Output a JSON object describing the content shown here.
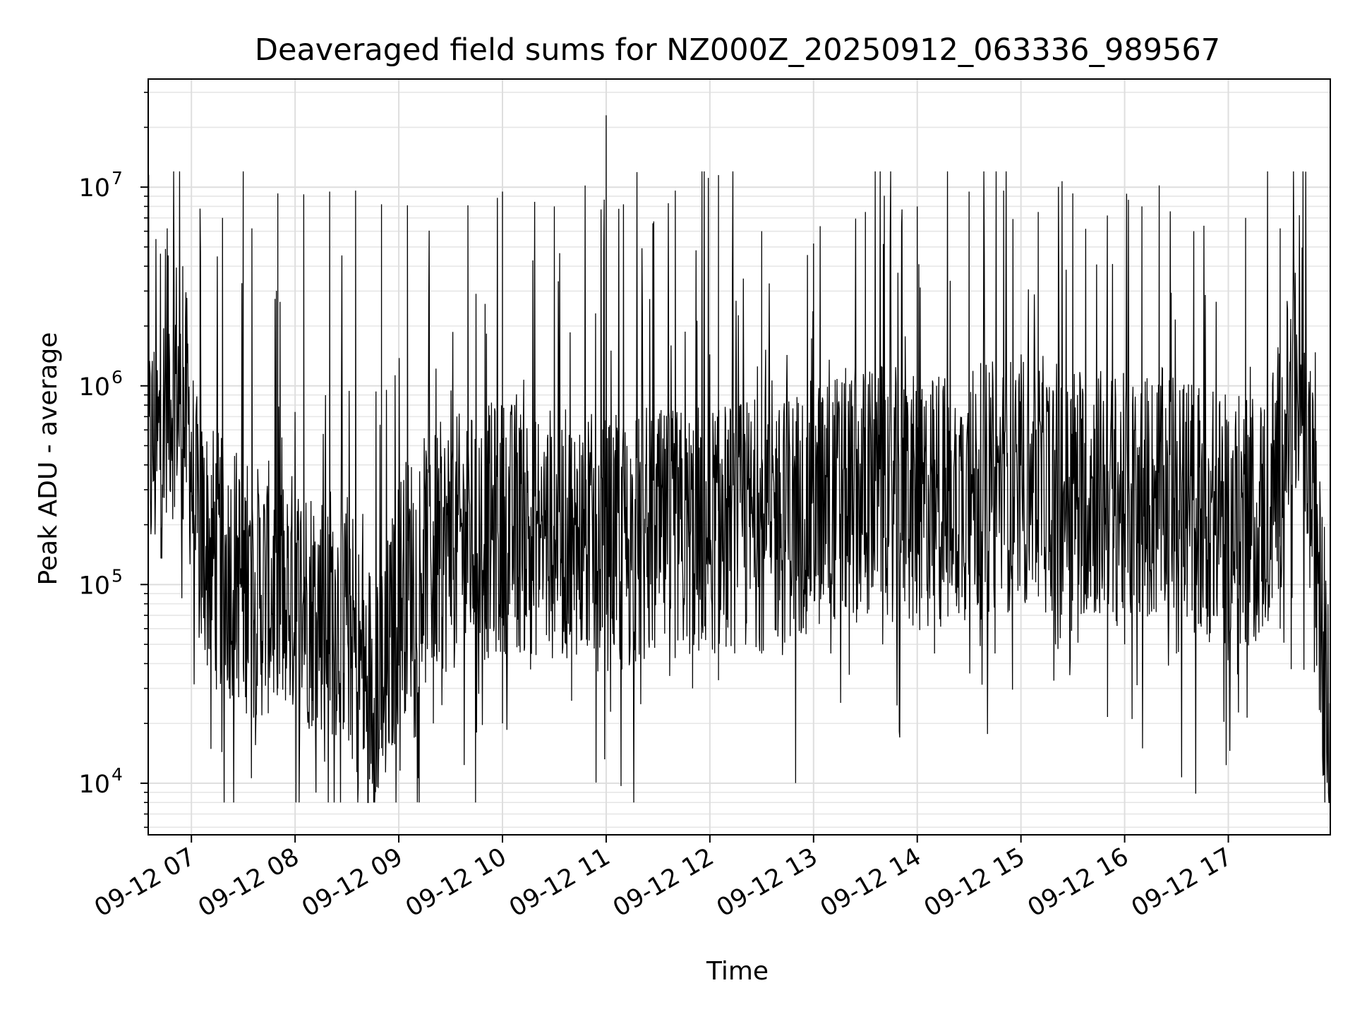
{
  "chart_data": {
    "type": "line",
    "title": "Deaveraged field sums for NZ000Z_20250912_063336_989567",
    "xlabel": "Time",
    "ylabel": "Peak ADU - average",
    "yscale": "log",
    "ylim": [
      5500,
      35000000
    ],
    "xlim": [
      "2025-09-12 06:35",
      "2025-09-12 17:59"
    ],
    "grid": true,
    "legend": "none",
    "line_color": "#000000",
    "x_ticks": [
      {
        "t": "2025-09-12 07:00",
        "label": "09-12 07"
      },
      {
        "t": "2025-09-12 08:00",
        "label": "09-12 08"
      },
      {
        "t": "2025-09-12 09:00",
        "label": "09-12 09"
      },
      {
        "t": "2025-09-12 10:00",
        "label": "09-12 10"
      },
      {
        "t": "2025-09-12 11:00",
        "label": "09-12 11"
      },
      {
        "t": "2025-09-12 12:00",
        "label": "09-12 12"
      },
      {
        "t": "2025-09-12 13:00",
        "label": "09-12 13"
      },
      {
        "t": "2025-09-12 14:00",
        "label": "09-12 14"
      },
      {
        "t": "2025-09-12 15:00",
        "label": "09-12 15"
      },
      {
        "t": "2025-09-12 16:00",
        "label": "09-12 16"
      },
      {
        "t": "2025-09-12 17:00",
        "label": "09-12 17"
      }
    ],
    "y_ticks": [
      {
        "value": 10000,
        "base": "10",
        "exp": "4"
      },
      {
        "value": 100000,
        "base": "10",
        "exp": "5"
      },
      {
        "value": 1000000,
        "base": "10",
        "exp": "6"
      },
      {
        "value": 10000000,
        "base": "10",
        "exp": "7"
      }
    ],
    "series": [
      {
        "points": [
          [
            "2025-09-12 06:35",
            400000
          ],
          [
            "2025-09-12 06:38",
            500000
          ],
          [
            "2025-09-12 06:40",
            450000
          ],
          [
            "2025-09-12 06:43",
            600000
          ],
          [
            "2025-09-12 06:45",
            800000
          ],
          [
            "2025-09-12 06:47",
            1100000
          ],
          [
            "2025-09-12 06:49",
            900000
          ],
          [
            "2025-09-12 06:51",
            1200000
          ],
          [
            "2025-09-12 06:53",
            800000
          ],
          [
            "2025-09-12 06:55",
            650000
          ],
          [
            "2025-09-12 06:57",
            700000
          ],
          [
            "2025-09-12 06:59",
            550000
          ],
          [
            "2025-09-12 07:00",
            400000
          ],
          [
            "2025-09-12 07:02",
            220000
          ],
          [
            "2025-09-12 07:05",
            180000
          ],
          [
            "2025-09-12 07:10",
            150000
          ],
          [
            "2025-09-12 07:15",
            140000
          ],
          [
            "2025-09-12 07:20",
            110000
          ],
          [
            "2025-09-12 07:25",
            120000
          ],
          [
            "2025-09-12 07:30",
            100000
          ],
          [
            "2025-09-12 07:35",
            95000
          ],
          [
            "2025-09-12 07:40",
            90000
          ],
          [
            "2025-09-12 07:45",
            95000
          ],
          [
            "2025-09-12 07:50",
            85000
          ],
          [
            "2025-09-12 07:55",
            90000
          ],
          [
            "2025-09-12 08:00",
            85000
          ],
          [
            "2025-09-12 08:10",
            80000
          ],
          [
            "2025-09-12 08:20",
            75000
          ],
          [
            "2025-09-12 08:30",
            70000
          ],
          [
            "2025-09-12 08:35",
            45000
          ],
          [
            "2025-09-12 08:40",
            35000
          ],
          [
            "2025-09-12 08:45",
            32000
          ],
          [
            "2025-09-12 08:50",
            35000
          ],
          [
            "2025-09-12 08:55",
            45000
          ],
          [
            "2025-09-12 09:00",
            90000
          ],
          [
            "2025-09-12 09:10",
            120000
          ],
          [
            "2025-09-12 09:20",
            140000
          ],
          [
            "2025-09-12 09:30",
            160000
          ],
          [
            "2025-09-12 09:40",
            170000
          ],
          [
            "2025-09-12 09:50",
            180000
          ],
          [
            "2025-09-12 10:00",
            200000
          ],
          [
            "2025-09-12 10:15",
            190000
          ],
          [
            "2025-09-12 10:30",
            180000
          ],
          [
            "2025-09-12 10:45",
            170000
          ],
          [
            "2025-09-12 11:00",
            160000
          ],
          [
            "2025-09-12 11:15",
            160000
          ],
          [
            "2025-09-12 11:30",
            170000
          ],
          [
            "2025-09-12 11:45",
            180000
          ],
          [
            "2025-09-12 12:00",
            190000
          ],
          [
            "2025-09-12 12:20",
            200000
          ],
          [
            "2025-09-12 12:40",
            210000
          ],
          [
            "2025-09-12 13:00",
            250000
          ],
          [
            "2025-09-12 13:20",
            280000
          ],
          [
            "2025-09-12 13:40",
            300000
          ],
          [
            "2025-09-12 14:00",
            250000
          ],
          [
            "2025-09-12 14:20",
            270000
          ],
          [
            "2025-09-12 14:40",
            300000
          ],
          [
            "2025-09-12 15:00",
            330000
          ],
          [
            "2025-09-12 15:20",
            310000
          ],
          [
            "2025-09-12 15:40",
            300000
          ],
          [
            "2025-09-12 16:00",
            260000
          ],
          [
            "2025-09-12 16:20",
            280000
          ],
          [
            "2025-09-12 16:40",
            250000
          ],
          [
            "2025-09-12 17:00",
            200000
          ],
          [
            "2025-09-12 17:20",
            220000
          ],
          [
            "2025-09-12 17:30",
            400000
          ],
          [
            "2025-09-12 17:35",
            700000
          ],
          [
            "2025-09-12 17:40",
            1000000
          ],
          [
            "2025-09-12 17:43",
            1200000
          ],
          [
            "2025-09-12 17:46",
            500000
          ],
          [
            "2025-09-12 17:50",
            150000
          ],
          [
            "2025-09-12 17:54",
            70000
          ],
          [
            "2025-09-12 17:57",
            30000
          ],
          [
            "2025-09-12 17:59",
            9000
          ]
        ],
        "peaks": [
          [
            "2025-09-12 06:46",
            6200000
          ],
          [
            "2025-09-12 06:55",
            4000000
          ],
          [
            "2025-09-12 07:05",
            7800000
          ],
          [
            "2025-09-12 07:18",
            7000000
          ],
          [
            "2025-09-12 07:35",
            6200000
          ],
          [
            "2025-09-12 07:50",
            9300000
          ],
          [
            "2025-09-12 08:05",
            9200000
          ],
          [
            "2025-09-12 08:20",
            9500000
          ],
          [
            "2025-09-12 08:35",
            9600000
          ],
          [
            "2025-09-12 08:50",
            8200000
          ],
          [
            "2025-09-12 09:05",
            8100000
          ],
          [
            "2025-09-12 09:40",
            8100000
          ],
          [
            "2025-09-12 10:00",
            9500000
          ],
          [
            "2025-09-12 10:30",
            8000000
          ],
          [
            "2025-09-12 11:00",
            23000000
          ],
          [
            "2025-09-12 11:10",
            8200000
          ],
          [
            "2025-09-12 11:40",
            9600000
          ],
          [
            "2025-09-12 12:05",
            11500000
          ],
          [
            "2025-09-12 12:30",
            6000000
          ],
          [
            "2025-09-12 13:00",
            5200000
          ],
          [
            "2025-09-12 13:30",
            7500000
          ],
          [
            "2025-09-12 14:00",
            8000000
          ],
          [
            "2025-09-12 14:30",
            9500000
          ],
          [
            "2025-09-12 14:50",
            9600000
          ],
          [
            "2025-09-12 15:10",
            7500000
          ],
          [
            "2025-09-12 15:30",
            9300000
          ],
          [
            "2025-09-12 15:50",
            7200000
          ],
          [
            "2025-09-12 16:10",
            8000000
          ],
          [
            "2025-09-12 16:20",
            10200000
          ],
          [
            "2025-09-12 16:40",
            6000000
          ],
          [
            "2025-09-12 17:10",
            7000000
          ],
          [
            "2025-09-12 17:30",
            6200000
          ]
        ],
        "troughs": [
          [
            "2025-09-12 07:10",
            60000
          ],
          [
            "2025-09-12 07:30",
            40000
          ],
          [
            "2025-09-12 07:50",
            30000
          ],
          [
            "2025-09-12 08:10",
            26000
          ],
          [
            "2025-09-12 08:40",
            15000
          ],
          [
            "2025-09-12 08:50",
            15000
          ],
          [
            "2025-09-12 09:20",
            20000
          ],
          [
            "2025-09-12 09:45",
            18000
          ],
          [
            "2025-09-12 10:00",
            20000
          ],
          [
            "2025-09-12 10:40",
            26000
          ],
          [
            "2025-09-12 11:20",
            25000
          ],
          [
            "2025-09-12 11:50",
            30000
          ],
          [
            "2025-09-12 12:05",
            33000
          ],
          [
            "2025-09-12 12:30",
            45000
          ],
          [
            "2025-09-12 13:10",
            45000
          ],
          [
            "2025-09-12 13:40",
            50000
          ],
          [
            "2025-09-12 14:10",
            45000
          ],
          [
            "2025-09-12 14:45",
            45000
          ],
          [
            "2025-09-12 15:20",
            50000
          ],
          [
            "2025-09-12 16:00",
            50000
          ],
          [
            "2025-09-12 16:30",
            45000
          ],
          [
            "2025-09-12 17:00",
            60000
          ],
          [
            "2025-09-12 17:30",
            60000
          ]
        ]
      }
    ]
  }
}
